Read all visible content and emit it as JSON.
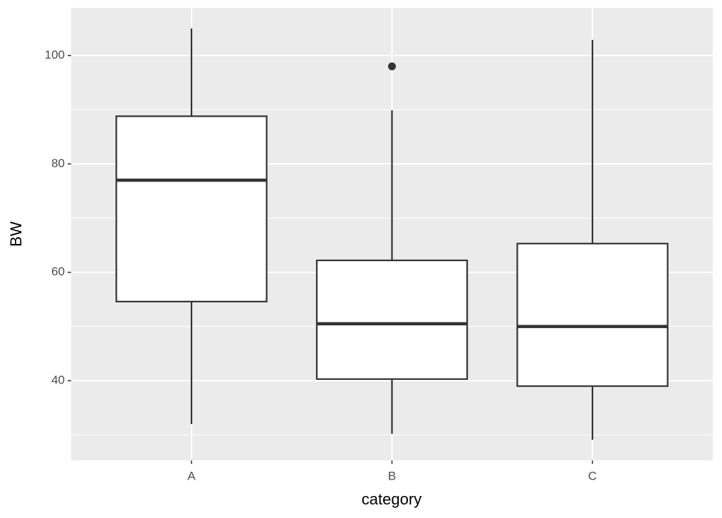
{
  "chart_data": {
    "type": "boxplot",
    "x_label": "category",
    "y_label": "BW",
    "categories": [
      "A",
      "B",
      "C"
    ],
    "boxes": [
      {
        "whislo": 32.0,
        "q1": 54.6,
        "median": 77.0,
        "q3": 88.8,
        "whishi": 105.0,
        "outliers": []
      },
      {
        "whislo": 30.2,
        "q1": 40.3,
        "median": 50.5,
        "q3": 62.2,
        "whishi": 89.9,
        "outliers": [
          98.0
        ]
      },
      {
        "whislo": 29.1,
        "q1": 39.0,
        "median": 50.0,
        "q3": 65.3,
        "whishi": 102.9,
        "outliers": []
      }
    ],
    "box_fill": "#ffffff",
    "box_stroke": "#333333",
    "panel_color": "#ebebeb",
    "ylim": [
      25.3,
      108.8
    ],
    "yticks": [
      40,
      60,
      80,
      100
    ],
    "minor_grid": [
      30,
      50,
      70,
      90
    ],
    "grid": true
  }
}
